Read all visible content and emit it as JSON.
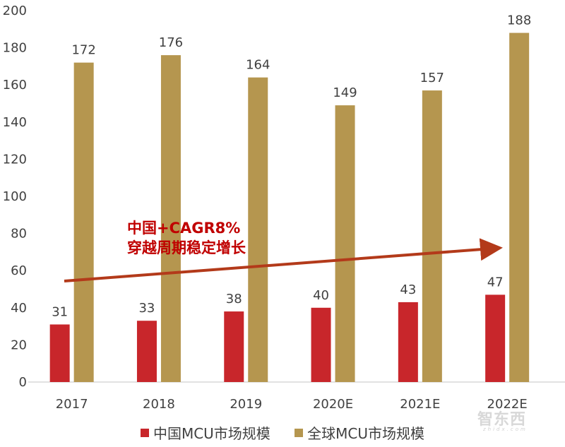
{
  "chart_data": {
    "type": "bar",
    "title": "",
    "xlabel": "",
    "ylabel": "",
    "ylim": [
      0,
      200
    ],
    "yticks": [
      0,
      20,
      40,
      60,
      80,
      100,
      120,
      140,
      160,
      180,
      200
    ],
    "grid": false,
    "legend_position": "bottom",
    "categories": [
      "2017",
      "2018",
      "2019",
      "2020E",
      "2021E",
      "2022E"
    ],
    "series": [
      {
        "name": "中国MCU市场规模",
        "color": "#c8262b",
        "values": [
          31,
          33,
          38,
          40,
          43,
          47
        ]
      },
      {
        "name": "全球MCU市场规模",
        "color": "#b5964f",
        "values": [
          172,
          176,
          164,
          149,
          157,
          188
        ]
      }
    ],
    "annotations": [
      {
        "text_line1": "中国+CAGR8%",
        "text_line2": "穿越周期稳定增长",
        "color": "#c00000",
        "arrow": {
          "from": [
            2017,
            54
          ],
          "to": [
            2022,
            74
          ],
          "color": "#b33a1a"
        }
      }
    ]
  },
  "legend": {
    "items": [
      {
        "label": "中国MCU市场规模",
        "color": "#c8262b"
      },
      {
        "label": "全球MCU市场规模",
        "color": "#b5964f"
      }
    ]
  },
  "annotation": {
    "line1": "中国+CAGR8%",
    "line2": "穿越周期稳定增长"
  },
  "watermark": {
    "text": "智东西",
    "sub": "zhidx.com"
  }
}
